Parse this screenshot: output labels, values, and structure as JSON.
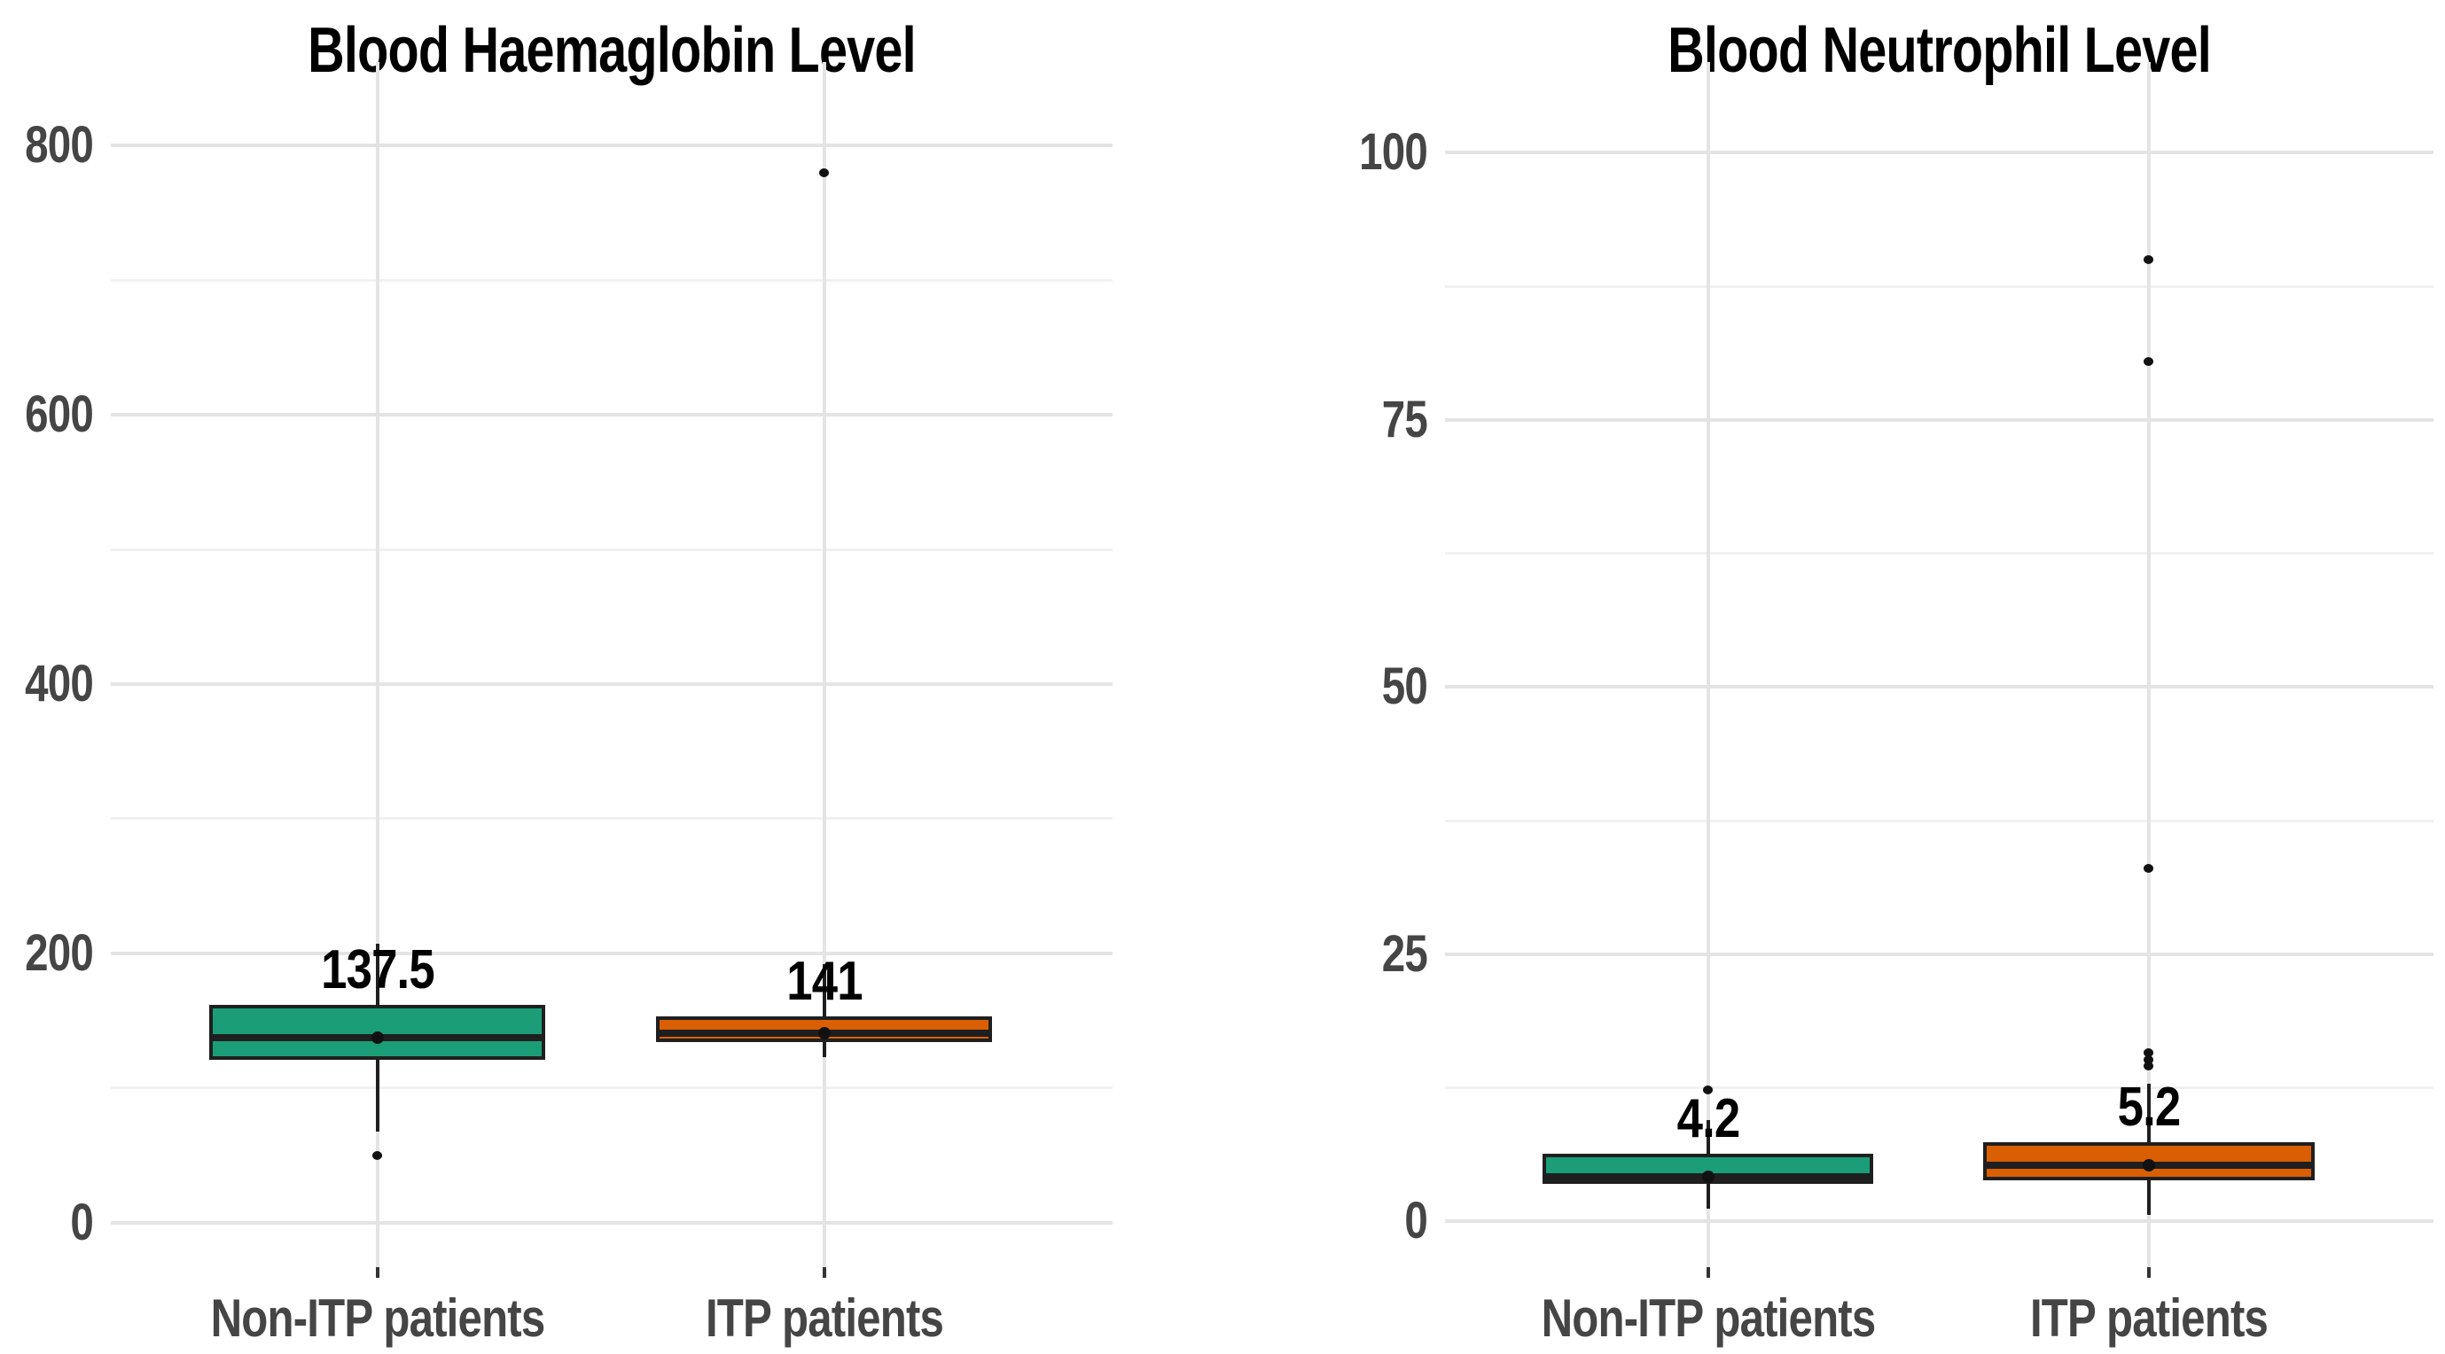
{
  "figure_background": "#ffffff",
  "styles": {
    "box_border_color": "#1f1f1f",
    "major_gridline_color": "#e4e4e4",
    "minor_gridline_color": "#f1f1f1",
    "axis_text_color": "#454545",
    "title_color": "#000000",
    "green": "#1b9e77",
    "orange": "#d95f02"
  },
  "chart_data": [
    {
      "type": "boxplot",
      "title": "Blood Haemaglobin Level",
      "xlabel": "",
      "ylabel": "",
      "grid": true,
      "legend": false,
      "ylim": [
        -33,
        862
      ],
      "y_axis": {
        "ticks": [
          0,
          200,
          400,
          600,
          800
        ],
        "minor_ticks": [
          100,
          300,
          500,
          700
        ]
      },
      "categories": [
        "Non-ITP patients",
        "ITP patients"
      ],
      "series": [
        {
          "name": "Non-ITP patients",
          "color": "#1b9e77",
          "whisker_low": 68,
          "q1": 121,
          "median": 137.5,
          "q3": 162,
          "whisker_high": 207,
          "mean": 137.5,
          "outliers": [
            50
          ],
          "median_label": "137.5"
        },
        {
          "name": "ITP patients",
          "color": "#d95f02",
          "whisker_low": 123,
          "q1": 134,
          "median": 141,
          "q3": 153,
          "whisker_high": 192,
          "mean": 141,
          "outliers": [
            780
          ],
          "median_label": "141"
        }
      ]
    },
    {
      "type": "boxplot",
      "title": "Blood Neutrophil Level",
      "xlabel": "",
      "ylabel": "",
      "grid": true,
      "legend": false,
      "ylim": [
        -4.3,
        108.5
      ],
      "y_axis": {
        "ticks": [
          0,
          25,
          50,
          75,
          100
        ],
        "minor_ticks": [
          12.5,
          37.5,
          62.5,
          87.5
        ]
      },
      "categories": [
        "Non-ITP patients",
        "ITP patients"
      ],
      "series": [
        {
          "name": "Non-ITP patients",
          "color": "#1b9e77",
          "whisker_low": 1.2,
          "q1": 3.5,
          "median": 4.2,
          "q3": 6.3,
          "whisker_high": 9.5,
          "mean": 4.2,
          "outliers": [
            12.3
          ],
          "median_label": "4.2"
        },
        {
          "name": "ITP patients",
          "color": "#d95f02",
          "whisker_low": 0.6,
          "q1": 3.8,
          "median": 5.2,
          "q3": 7.4,
          "whisker_high": 12.9,
          "mean": 5.2,
          "outliers": [
            14.5,
            15.1,
            15.8,
            33,
            80.5,
            90
          ],
          "median_label": "5.2"
        }
      ]
    }
  ]
}
